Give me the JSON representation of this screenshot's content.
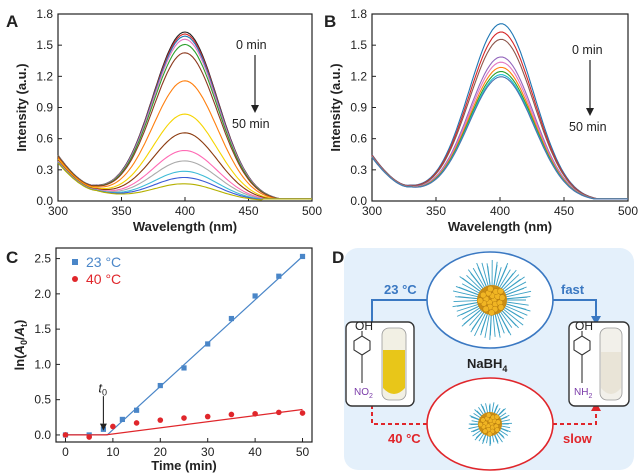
{
  "panels": {
    "A": {
      "label": "A",
      "time_start": "0 min",
      "time_end": "50 min"
    },
    "B": {
      "label": "B",
      "time_start": "0 min",
      "time_end": "50 min"
    },
    "C": {
      "label": "C"
    },
    "D": {
      "label": "D",
      "low_temp": "23 °C",
      "high_temp": "40 °C",
      "fast": "fast",
      "slow": "slow",
      "reagent_main": "NaBH",
      "reagent_sub": "4",
      "reactant_group_top": "OH",
      "reactant_group_bottom": "NO",
      "reactant_group_sub": "2",
      "product_group_top": "OH",
      "product_group_bottom": "NH",
      "product_group_sub": "2"
    }
  },
  "chart_data": [
    {
      "type": "line",
      "panel": "A",
      "xlabel": "Wavelength (nm)",
      "ylabel": "Intensity (a.u.)",
      "xlim": [
        300,
        500
      ],
      "ylim": [
        0,
        1.8
      ],
      "xticks": [
        "300",
        "350",
        "400",
        "450",
        "500"
      ],
      "yticks": [
        "0.0",
        "0.3",
        "0.6",
        "0.9",
        "1.2",
        "1.5",
        "1.8"
      ],
      "peak_x": 400,
      "series": [
        {
          "color": "#222222",
          "peak": 1.62
        },
        {
          "color": "#d62728",
          "peak": 1.6
        },
        {
          "color": "#1f77b4",
          "peak": 1.58
        },
        {
          "color": "#e377c2",
          "peak": 1.55
        },
        {
          "color": "#2ca02c",
          "peak": 1.5
        },
        {
          "color": "#8c3a1f",
          "peak": 1.42
        },
        {
          "color": "#ff7f0e",
          "peak": 1.15
        },
        {
          "color": "#f5d400",
          "peak": 0.83
        },
        {
          "color": "#8b3a0e",
          "peak": 0.65
        },
        {
          "color": "#ff69b4",
          "peak": 0.48
        },
        {
          "color": "#aaaaaa",
          "peak": 0.38
        },
        {
          "color": "#3fbcd7",
          "peak": 0.28
        },
        {
          "color": "#3b5bd6",
          "peak": 0.22
        },
        {
          "color": "#b5b000",
          "peak": 0.16
        }
      ]
    },
    {
      "type": "line",
      "panel": "B",
      "xlabel": "Wavelength (nm)",
      "ylabel": "Intensity (a.u.)",
      "xlim": [
        300,
        500
      ],
      "ylim": [
        0,
        1.8
      ],
      "xticks": [
        "300",
        "350",
        "400",
        "450",
        "500"
      ],
      "yticks": [
        "0.0",
        "0.3",
        "0.6",
        "0.9",
        "1.2",
        "1.5",
        "1.8"
      ],
      "peak_x": 401,
      "series": [
        {
          "color": "#1f77b4",
          "peak": 1.7
        },
        {
          "color": "#d62728",
          "peak": 1.62
        },
        {
          "color": "#8c564b",
          "peak": 1.55
        },
        {
          "color": "#9467bd",
          "peak": 1.38
        },
        {
          "color": "#e377c2",
          "peak": 1.33
        },
        {
          "color": "#ff7f0e",
          "peak": 1.28
        },
        {
          "color": "#2ca02c",
          "peak": 1.24
        },
        {
          "color": "#17becf",
          "peak": 1.21
        },
        {
          "color": "#4c72b0",
          "peak": 1.19
        }
      ]
    },
    {
      "type": "scatter",
      "panel": "C",
      "xlabel": "Time (min)",
      "ylabel_parts": [
        "ln(",
        "A",
        "0",
        "/",
        "A",
        "t",
        ")"
      ],
      "xlim": [
        -2,
        52
      ],
      "ylim": [
        -0.1,
        2.65
      ],
      "xticks": [
        "0",
        "10",
        "20",
        "30",
        "40",
        "50"
      ],
      "yticks": [
        "0.0",
        "0.5",
        "1.0",
        "1.5",
        "2.0",
        "2.5"
      ],
      "t0_label": "t",
      "t0_sub": "0",
      "t0_x": 8,
      "series": [
        {
          "name": "23 °C",
          "color": "#4a86c8",
          "marker": "square",
          "x": [
            0,
            5,
            8,
            12,
            15,
            20,
            25,
            30,
            35,
            40,
            45,
            50
          ],
          "y": [
            0.0,
            0.0,
            0.08,
            0.22,
            0.35,
            0.7,
            0.95,
            1.29,
            1.65,
            1.97,
            2.25,
            2.53
          ],
          "fit": [
            [
              0,
              0.0
            ],
            [
              8.8,
              0.0
            ],
            [
              50,
              2.53
            ]
          ]
        },
        {
          "name": "40 °C",
          "color": "#e0262b",
          "marker": "circle",
          "x": [
            0,
            5,
            10,
            15,
            20,
            25,
            30,
            35,
            40,
            45,
            50
          ],
          "y": [
            0.0,
            -0.03,
            0.12,
            0.17,
            0.21,
            0.24,
            0.26,
            0.29,
            0.3,
            0.32,
            0.31
          ],
          "fit": [
            [
              0,
              0.0
            ],
            [
              8.5,
              0.0
            ],
            [
              50,
              0.36
            ]
          ]
        }
      ]
    }
  ]
}
